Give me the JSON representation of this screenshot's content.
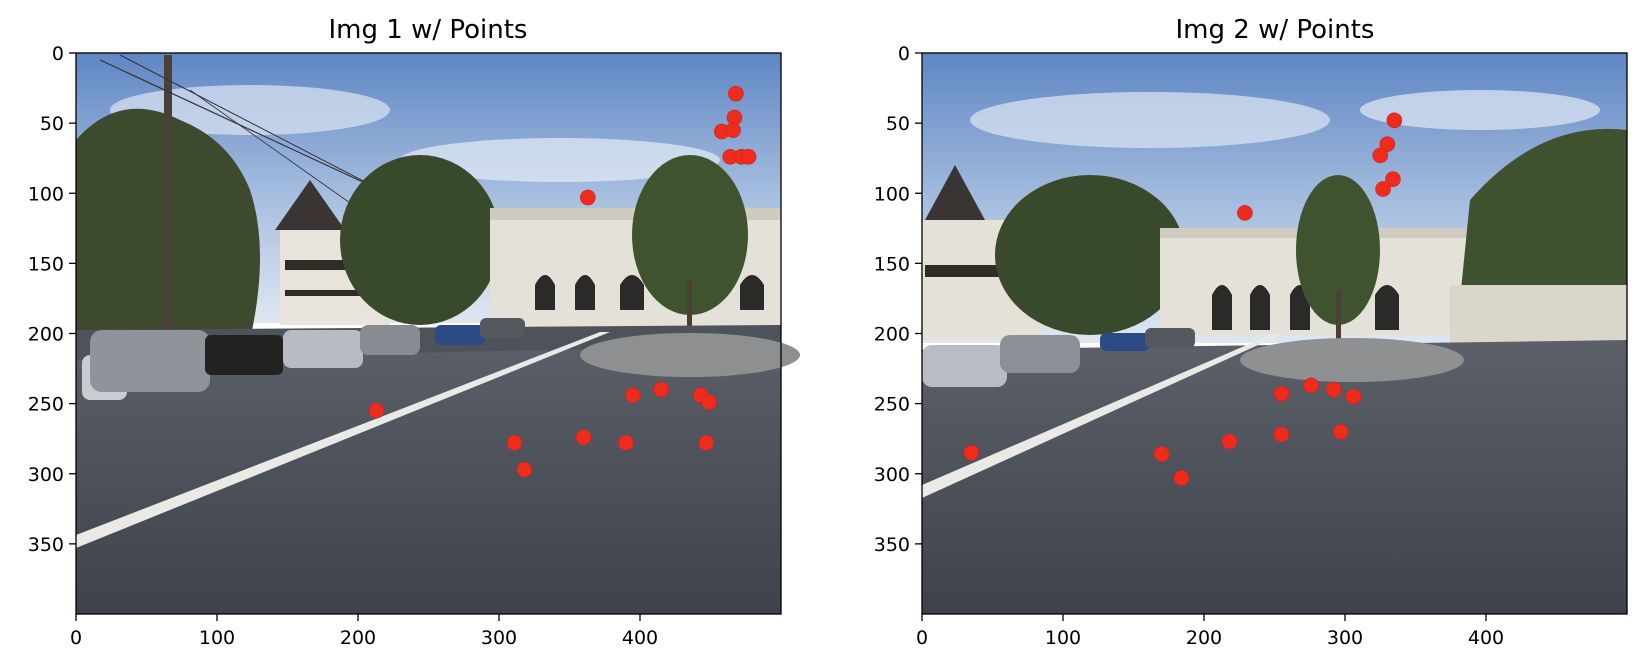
{
  "chart_data": [
    {
      "type": "scatter",
      "title": "Img 1 w/ Points",
      "xlim": [
        0,
        500
      ],
      "ylim": [
        400,
        0
      ],
      "y_inverted": true,
      "xticks": [
        0,
        100,
        200,
        300,
        400
      ],
      "yticks": [
        0,
        50,
        100,
        150,
        200,
        250,
        300,
        350
      ],
      "grid": false,
      "marker_color": "#ef2b1e",
      "background": "photo of a street plaza with parked cars and an arched building",
      "points": [
        {
          "x": 468,
          "y": 29
        },
        {
          "x": 467,
          "y": 46
        },
        {
          "x": 458,
          "y": 56
        },
        {
          "x": 466,
          "y": 55
        },
        {
          "x": 464,
          "y": 74
        },
        {
          "x": 472,
          "y": 74
        },
        {
          "x": 477,
          "y": 74
        },
        {
          "x": 363,
          "y": 103
        },
        {
          "x": 213,
          "y": 255
        },
        {
          "x": 395,
          "y": 244
        },
        {
          "x": 415,
          "y": 240
        },
        {
          "x": 443,
          "y": 244
        },
        {
          "x": 449,
          "y": 249
        },
        {
          "x": 360,
          "y": 274
        },
        {
          "x": 390,
          "y": 278
        },
        {
          "x": 447,
          "y": 278
        },
        {
          "x": 311,
          "y": 278
        },
        {
          "x": 318,
          "y": 297
        }
      ]
    },
    {
      "type": "scatter",
      "title": "Img 2 w/ Points",
      "xlim": [
        0,
        500
      ],
      "ylim": [
        400,
        0
      ],
      "y_inverted": true,
      "xticks": [
        0,
        100,
        200,
        300,
        400
      ],
      "yticks": [
        0,
        50,
        100,
        150,
        200,
        250,
        300,
        350
      ],
      "grid": false,
      "marker_color": "#ef2b1e",
      "background": "photo of the same street plaza from a shifted viewpoint",
      "points": [
        {
          "x": 335,
          "y": 48
        },
        {
          "x": 330,
          "y": 65
        },
        {
          "x": 325,
          "y": 73
        },
        {
          "x": 334,
          "y": 90
        },
        {
          "x": 327,
          "y": 97
        },
        {
          "x": 229,
          "y": 114
        },
        {
          "x": 35,
          "y": 285
        },
        {
          "x": 255,
          "y": 243
        },
        {
          "x": 276,
          "y": 237
        },
        {
          "x": 292,
          "y": 240
        },
        {
          "x": 306,
          "y": 245
        },
        {
          "x": 255,
          "y": 272
        },
        {
          "x": 297,
          "y": 270
        },
        {
          "x": 218,
          "y": 277
        },
        {
          "x": 170,
          "y": 286
        },
        {
          "x": 184,
          "y": 303
        }
      ]
    }
  ]
}
